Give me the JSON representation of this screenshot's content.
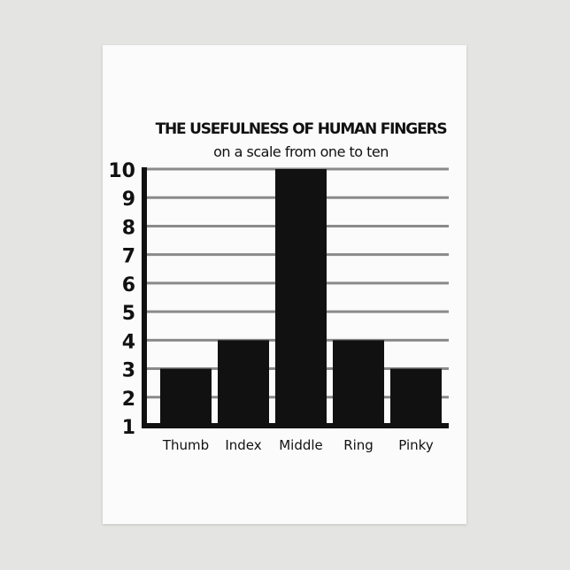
{
  "chart_data": {
    "type": "bar",
    "title": "THE USEFULNESS OF HUMAN FINGERS",
    "subtitle": "on a scale from one to ten",
    "categories": [
      "Thumb",
      "Index",
      "Middle",
      "Ring",
      "Pinky"
    ],
    "values": [
      3,
      4,
      10,
      4,
      3
    ],
    "ylim": [
      1,
      10
    ],
    "yticks": [
      "1",
      "2",
      "3",
      "4",
      "5",
      "6",
      "7",
      "8",
      "9",
      "10"
    ],
    "grid": true,
    "bar_color": "#111111",
    "grid_color": "#8a8a8a"
  }
}
